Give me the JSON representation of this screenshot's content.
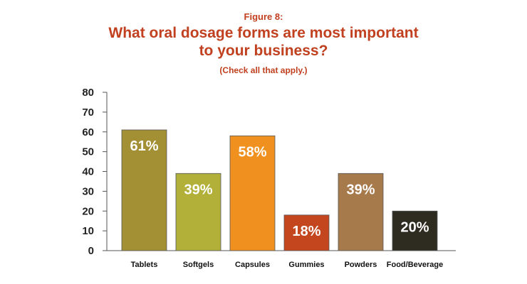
{
  "header": {
    "figure_label": "Figure 8:",
    "title_line1": "What oral dosage forms are most important",
    "title_line2": "to your business?",
    "subtitle": "(Check all that apply.)"
  },
  "colors": {
    "title": "#c0401f",
    "axis": "#555555"
  },
  "chart_data": {
    "type": "bar",
    "title": "What oral dosage forms are most important to your business?",
    "subtitle": "(Check all that apply.)",
    "categories": [
      "Tablets",
      "Softgels",
      "Capsules",
      "Gummies",
      "Powders",
      "Food/Beverage"
    ],
    "values": [
      61,
      39,
      58,
      18,
      39,
      20
    ],
    "data_labels": [
      "61%",
      "39%",
      "58%",
      "18%",
      "39%",
      "20%"
    ],
    "bar_colors": [
      "#a38f34",
      "#b2b038",
      "#f0901e",
      "#c4461f",
      "#a77a4c",
      "#2e2c21"
    ],
    "yticks": [
      "0",
      "10",
      "20",
      "30",
      "40",
      "50",
      "60",
      "70",
      "80"
    ],
    "ylim": [
      0,
      80
    ],
    "grid": false,
    "legend": "none"
  }
}
